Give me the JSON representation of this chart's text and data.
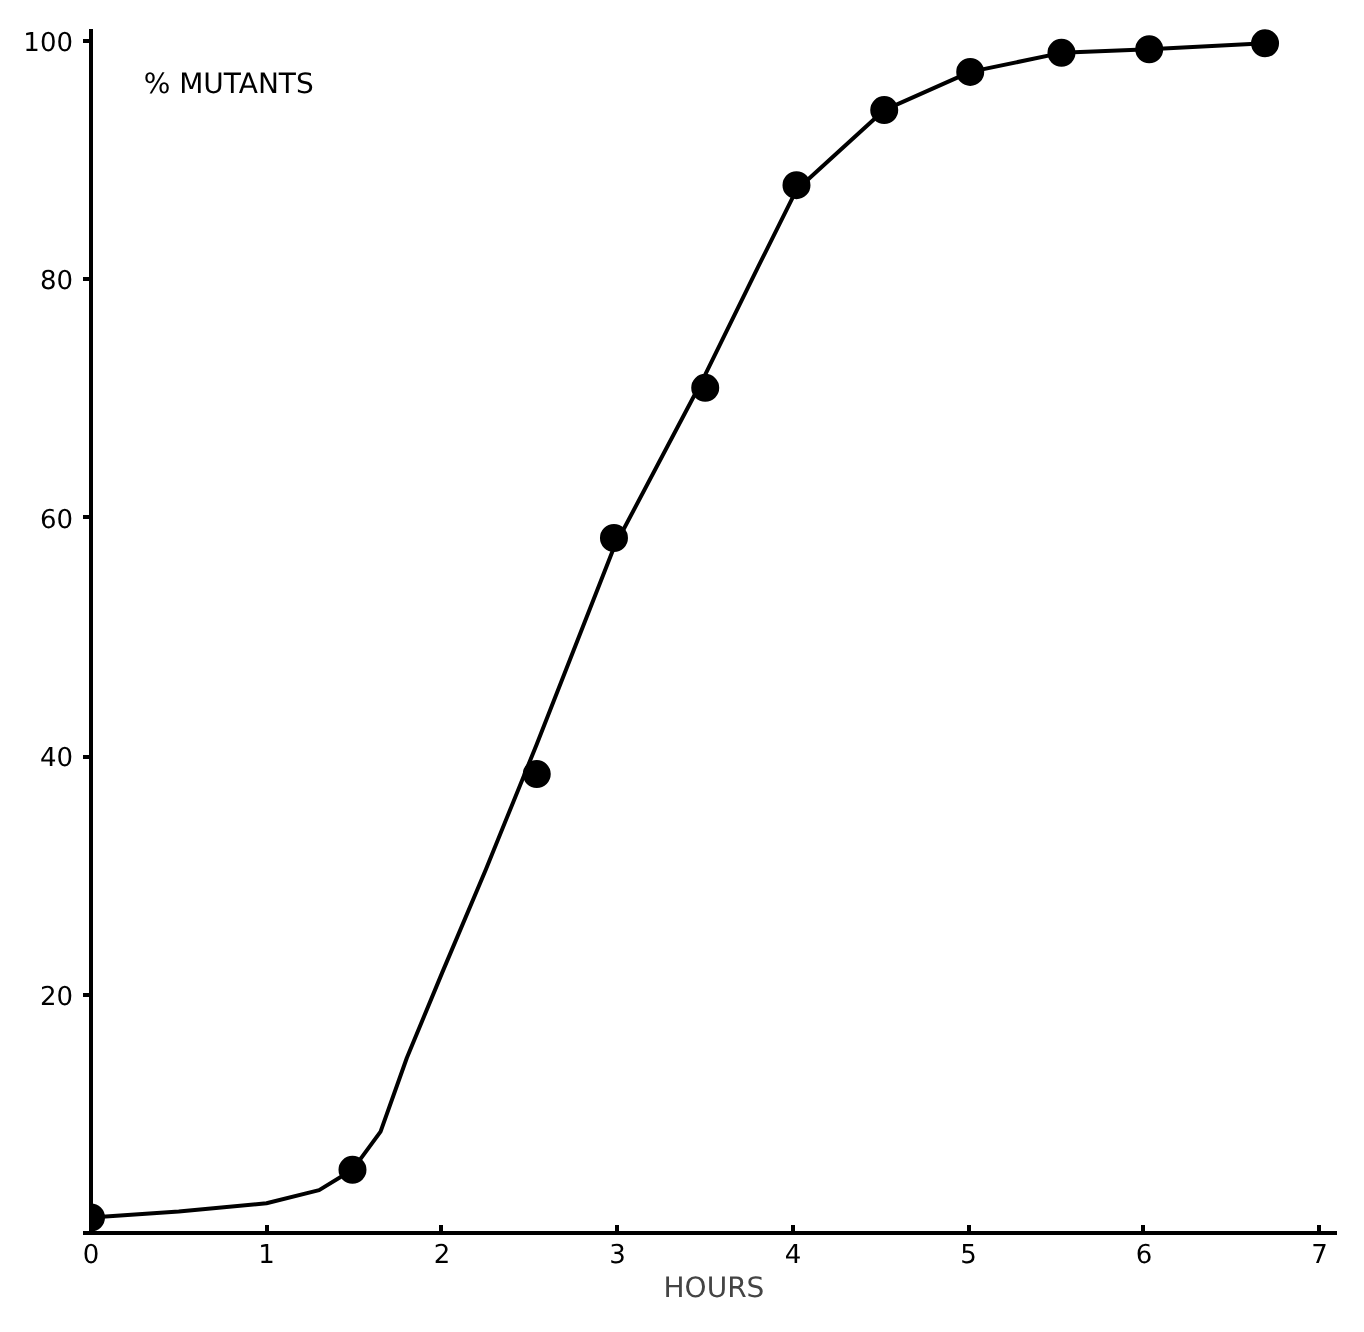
{
  "chart_data": {
    "type": "scatter",
    "xlabel": "HOURS",
    "ylabel": "% MUTANTS",
    "xlim": [
      0,
      7.1
    ],
    "ylim": [
      0,
      101
    ],
    "xticks": [
      0,
      1,
      2,
      3,
      4,
      5,
      6,
      7
    ],
    "yticks": [
      {
        "value": 0,
        "label": null
      },
      20,
      40,
      60,
      80,
      100
    ],
    "grid": false,
    "marker": "circle",
    "series": [
      {
        "color": "#000000",
        "x": [
          0,
          1.49,
          2.54,
          2.98,
          3.5,
          4.02,
          4.52,
          5.01,
          5.53,
          6.03,
          6.69
        ],
        "values": [
          1.3,
          5.3,
          38.5,
          58.3,
          70.9,
          87.9,
          94.2,
          97.4,
          99.0,
          99.3,
          99.8
        ]
      },
      {
        "type": "line",
        "color": "#000000",
        "marker": "none",
        "line_style": "solid",
        "x": [
          0,
          0.5,
          1,
          1.3,
          1.49,
          1.65,
          1.8,
          2,
          2.25,
          2.54,
          2.98,
          3.5,
          3.8,
          4.02,
          4.52,
          5.01,
          5.53,
          6.03,
          6.69
        ],
        "values": [
          1.3,
          1.8,
          2.5,
          3.6,
          5.3,
          8.5,
          14.7,
          21.8,
          30.5,
          41,
          57.5,
          72,
          81,
          87.5,
          94.2,
          97.4,
          99.0,
          99.3,
          99.8
        ]
      }
    ]
  }
}
